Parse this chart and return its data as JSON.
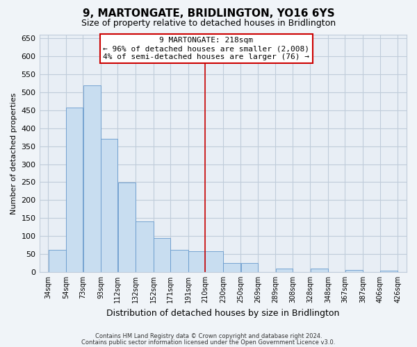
{
  "title": "9, MARTONGATE, BRIDLINGTON, YO16 6YS",
  "subtitle": "Size of property relative to detached houses in Bridlington",
  "xlabel": "Distribution of detached houses by size in Bridlington",
  "ylabel": "Number of detached properties",
  "bar_left_edges": [
    34,
    54,
    73,
    93,
    112,
    132,
    152,
    171,
    191,
    210,
    230,
    250,
    269,
    289,
    308,
    328,
    348,
    367,
    387,
    406
  ],
  "bar_heights": [
    62,
    457,
    519,
    370,
    249,
    140,
    95,
    62,
    57,
    57,
    25,
    25,
    0,
    10,
    0,
    10,
    0,
    5,
    0,
    3
  ],
  "bar_widths": [
    20,
    19,
    20,
    19,
    20,
    20,
    19,
    20,
    19,
    20,
    20,
    19,
    20,
    19,
    20,
    20,
    19,
    20,
    19,
    20
  ],
  "bar_color": "#c8ddf0",
  "bar_edge_color": "#6699cc",
  "marker_x": 210,
  "marker_color": "#cc0000",
  "ylim": [
    0,
    660
  ],
  "yticks": [
    0,
    50,
    100,
    150,
    200,
    250,
    300,
    350,
    400,
    450,
    500,
    550,
    600,
    650
  ],
  "xtick_labels": [
    "34sqm",
    "54sqm",
    "73sqm",
    "93sqm",
    "112sqm",
    "132sqm",
    "152sqm",
    "171sqm",
    "191sqm",
    "210sqm",
    "230sqm",
    "250sqm",
    "269sqm",
    "289sqm",
    "308sqm",
    "328sqm",
    "348sqm",
    "367sqm",
    "387sqm",
    "406sqm",
    "426sqm"
  ],
  "xtick_positions": [
    34,
    54,
    73,
    93,
    112,
    132,
    152,
    171,
    191,
    210,
    230,
    250,
    269,
    289,
    308,
    328,
    348,
    367,
    387,
    406,
    426
  ],
  "annotation_title": "9 MARTONGATE: 218sqm",
  "annotation_line1": "← 96% of detached houses are smaller (2,008)",
  "annotation_line2": "4% of semi-detached houses are larger (76) →",
  "footer1": "Contains HM Land Registry data © Crown copyright and database right 2024.",
  "footer2": "Contains public sector information licensed under the Open Government Licence v3.0.",
  "bg_color": "#f0f4f8",
  "plot_bg_color": "#e8eef5",
  "grid_color": "#c0ccda"
}
